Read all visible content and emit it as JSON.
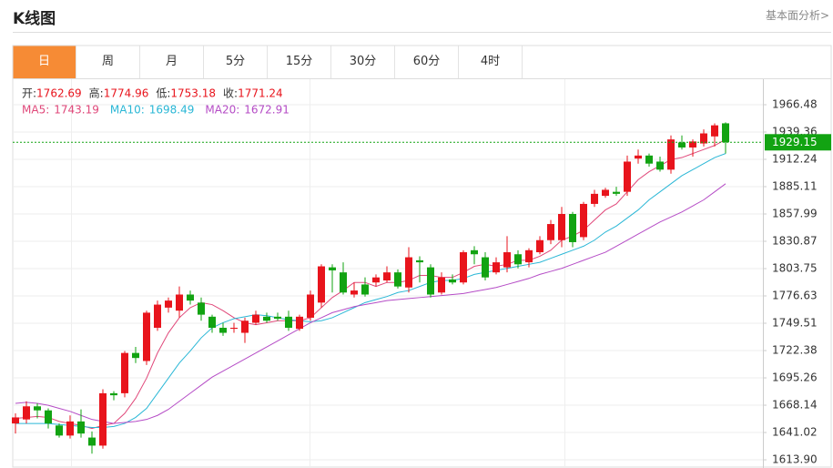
{
  "header": {
    "title": "K线图",
    "link": "基本面分析>"
  },
  "tabs": {
    "items": [
      "日",
      "周",
      "月",
      "5分",
      "15分",
      "30分",
      "60分",
      "4时"
    ],
    "active": 0,
    "active_color": "#f68b35"
  },
  "chart_data": {
    "type": "candlestick",
    "info_ohlc": [
      {
        "label": "开:",
        "value": 1762.69
      },
      {
        "label": "高:",
        "value": 1774.96
      },
      {
        "label": "低:",
        "value": 1753.18
      },
      {
        "label": "收:",
        "value": 1771.24
      }
    ],
    "info_ma": [
      {
        "label": "MA5:",
        "value": 1743.19,
        "color": "#e0487a"
      },
      {
        "label": "MA10:",
        "value": 1698.49,
        "color": "#2ab7d6"
      },
      {
        "label": "MA20:",
        "value": 1672.91,
        "color": "#b54cc6"
      }
    ],
    "up_color": "#e8141c",
    "down_color": "#12a312",
    "open": [
      1650,
      1654,
      1667,
      1663,
      1648,
      1638,
      1652,
      1636,
      1628,
      1680,
      1680,
      1720,
      1712,
      1745,
      1765,
      1762,
      1778,
      1770,
      1756,
      1745,
      1744,
      1740,
      1750,
      1756,
      1756,
      1756,
      1744,
      1755,
      1770,
      1805,
      1800,
      1778,
      1788,
      1790,
      1792,
      1800,
      1785,
      1812,
      1805,
      1780,
      1793,
      1790,
      1822,
      1815,
      1800,
      1805,
      1818,
      1810,
      1820,
      1832,
      1832,
      1858,
      1835,
      1868,
      1876,
      1880,
      1880,
      1913,
      1916,
      1910,
      1902,
      1929,
      1924,
      1928,
      1935,
      1948
    ],
    "high": [
      1660,
      1672,
      1670,
      1665,
      1650,
      1658,
      1664,
      1642,
      1684,
      1682,
      1722,
      1726,
      1762,
      1772,
      1775,
      1786,
      1782,
      1775,
      1758,
      1750,
      1750,
      1755,
      1762,
      1760,
      1760,
      1762,
      1758,
      1782,
      1808,
      1808,
      1810,
      1790,
      1795,
      1798,
      1806,
      1803,
      1825,
      1816,
      1808,
      1800,
      1798,
      1822,
      1826,
      1820,
      1815,
      1836,
      1822,
      1824,
      1836,
      1852,
      1865,
      1860,
      1870,
      1882,
      1884,
      1885,
      1916,
      1922,
      1918,
      1915,
      1936,
      1936,
      1932,
      1942,
      1948,
      1949
    ],
    "low": [
      1640,
      1650,
      1655,
      1645,
      1636,
      1635,
      1636,
      1620,
      1625,
      1673,
      1676,
      1710,
      1708,
      1742,
      1760,
      1755,
      1768,
      1752,
      1740,
      1737,
      1740,
      1730,
      1748,
      1750,
      1752,
      1742,
      1742,
      1752,
      1765,
      1780,
      1778,
      1775,
      1776,
      1786,
      1790,
      1784,
      1780,
      1790,
      1775,
      1778,
      1788,
      1788,
      1808,
      1792,
      1798,
      1800,
      1804,
      1805,
      1818,
      1828,
      1825,
      1825,
      1832,
      1865,
      1874,
      1876,
      1876,
      1908,
      1905,
      1900,
      1898,
      1922,
      1915,
      1925,
      1925,
      1918
    ],
    "close": [
      1656,
      1667,
      1663,
      1650,
      1638,
      1652,
      1640,
      1628,
      1680,
      1678,
      1720,
      1715,
      1760,
      1768,
      1772,
      1778,
      1772,
      1758,
      1745,
      1740,
      1745,
      1752,
      1758,
      1752,
      1754,
      1745,
      1756,
      1778,
      1806,
      1802,
      1780,
      1782,
      1778,
      1795,
      1800,
      1786,
      1815,
      1810,
      1778,
      1795,
      1790,
      1820,
      1818,
      1795,
      1810,
      1820,
      1808,
      1822,
      1832,
      1848,
      1858,
      1830,
      1868,
      1878,
      1882,
      1878,
      1910,
      1916,
      1908,
      1902,
      1932,
      1924,
      1930,
      1938,
      1946,
      1929.15
    ],
    "lines": [
      {
        "color": "#e0487a",
        "values": [
          1655,
          1656,
          1657,
          1656,
          1652,
          1650,
          1648,
          1645,
          1648,
          1650,
          1660,
          1675,
          1695,
          1720,
          1740,
          1755,
          1765,
          1770,
          1768,
          1762,
          1755,
          1750,
          1748,
          1750,
          1752,
          1752,
          1752,
          1755,
          1765,
          1775,
          1782,
          1790,
          1790,
          1786,
          1790,
          1790,
          1792,
          1797,
          1797,
          1795,
          1795,
          1800,
          1806,
          1808,
          1806,
          1808,
          1812,
          1812,
          1816,
          1822,
          1832,
          1836,
          1842,
          1852,
          1862,
          1868,
          1880,
          1892,
          1900,
          1906,
          1912,
          1914,
          1918,
          1922,
          1926,
          1932
        ]
      },
      {
        "color": "#2ab7d6",
        "values": [
          1650,
          1650,
          1650,
          1650,
          1649,
          1648,
          1647,
          1646,
          1646,
          1647,
          1650,
          1656,
          1665,
          1680,
          1695,
          1710,
          1722,
          1735,
          1745,
          1750,
          1754,
          1756,
          1758,
          1757,
          1755,
          1753,
          1752,
          1751,
          1752,
          1755,
          1760,
          1765,
          1770,
          1773,
          1776,
          1780,
          1782,
          1786,
          1790,
          1792,
          1792,
          1794,
          1798,
          1800,
          1802,
          1804,
          1806,
          1808,
          1810,
          1814,
          1818,
          1822,
          1826,
          1832,
          1840,
          1846,
          1854,
          1862,
          1872,
          1880,
          1888,
          1896,
          1902,
          1908,
          1914,
          1918
        ]
      },
      {
        "color": "#b54cc6",
        "values": [
          1670,
          1671,
          1670,
          1668,
          1665,
          1662,
          1658,
          1654,
          1652,
          1650,
          1651,
          1652,
          1654,
          1658,
          1664,
          1672,
          1680,
          1688,
          1696,
          1702,
          1708,
          1714,
          1720,
          1726,
          1732,
          1738,
          1744,
          1750,
          1755,
          1760,
          1763,
          1766,
          1768,
          1770,
          1772,
          1773,
          1774,
          1775,
          1776,
          1777,
          1778,
          1779,
          1781,
          1783,
          1785,
          1788,
          1791,
          1794,
          1798,
          1801,
          1804,
          1808,
          1812,
          1816,
          1820,
          1826,
          1832,
          1838,
          1844,
          1850,
          1855,
          1860,
          1866,
          1872,
          1880,
          1888
        ]
      }
    ],
    "last_price": 1929.15,
    "last_price_color": "#12a312",
    "ylim": [
      1605.78,
      1991.79
    ],
    "yticks": [
      1966.48,
      1939.36,
      1912.24,
      1885.11,
      1857.99,
      1830.87,
      1803.75,
      1776.63,
      1749.51,
      1722.38,
      1695.26,
      1668.14,
      1641.02,
      {
        "value": 1613.9,
        "label": "1613.90"
      }
    ],
    "grid": true
  }
}
